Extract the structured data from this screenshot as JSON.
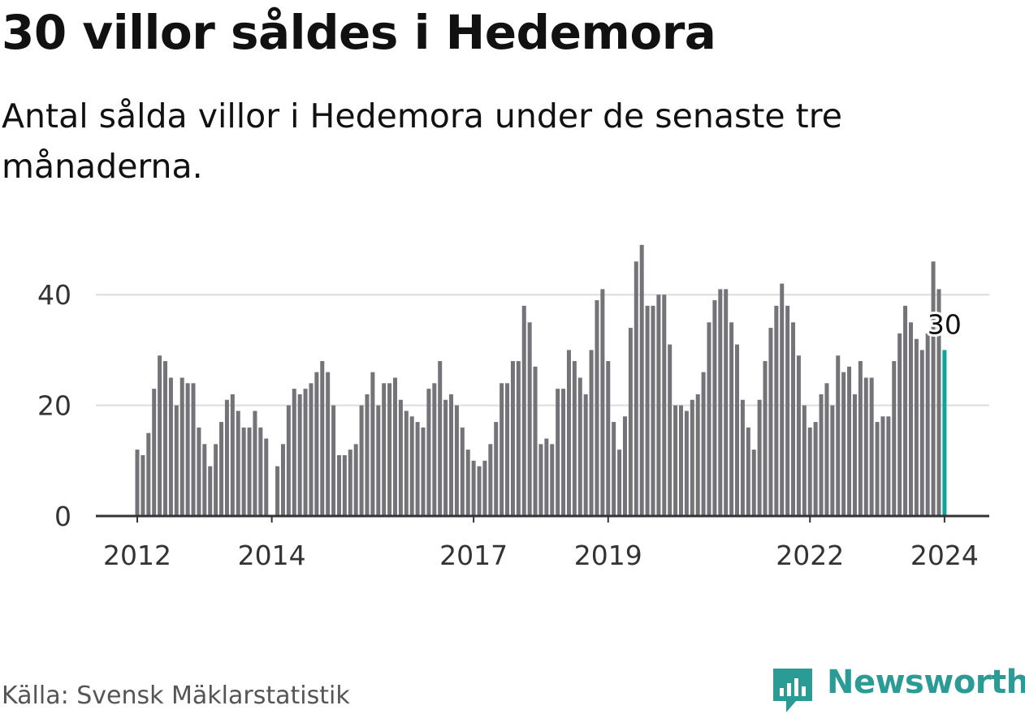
{
  "title": "30 villor såldes i Hedemora",
  "subtitle": "Antal sålda villor i Hedemora under de senaste tre månaderna.",
  "source": "Källa: Svensk Mäklarstatistik",
  "logo": {
    "name": "Newsworthy",
    "icon": "newsworthy-logo-icon",
    "color": "#2a9b95"
  },
  "colors": {
    "bar": "#737378",
    "highlight": "#13a199",
    "grid": "#dddddd",
    "axis": "#333333"
  },
  "chart_data": {
    "type": "bar",
    "title": "30 villor såldes i Hedemora",
    "ylabel": "",
    "xlabel": "",
    "ylim": [
      0,
      50
    ],
    "yticks": [
      0,
      20,
      40
    ],
    "grid": true,
    "start": "2012-01",
    "values": [
      12,
      11,
      15,
      23,
      29,
      28,
      25,
      20,
      25,
      24,
      24,
      16,
      13,
      9,
      13,
      17,
      21,
      22,
      19,
      16,
      16,
      19,
      16,
      14,
      null,
      9,
      13,
      20,
      23,
      22,
      23,
      24,
      26,
      28,
      26,
      20,
      11,
      11,
      12,
      13,
      20,
      22,
      26,
      20,
      24,
      24,
      25,
      21,
      19,
      18,
      17,
      16,
      23,
      24,
      28,
      21,
      22,
      20,
      16,
      12,
      10,
      9,
      10,
      13,
      17,
      24,
      24,
      28,
      28,
      38,
      35,
      27,
      13,
      14,
      13,
      23,
      23,
      30,
      28,
      25,
      22,
      30,
      39,
      41,
      28,
      17,
      12,
      18,
      34,
      46,
      49,
      38,
      38,
      40,
      40,
      31,
      20,
      20,
      19,
      21,
      22,
      26,
      35,
      39,
      41,
      41,
      35,
      31,
      21,
      16,
      12,
      21,
      28,
      34,
      38,
      42,
      38,
      35,
      29,
      20,
      16,
      17,
      22,
      24,
      20,
      29,
      26,
      27,
      22,
      28,
      25,
      25,
      17,
      18,
      18,
      28,
      33,
      38,
      35,
      32,
      30,
      33,
      46,
      41,
      30
    ],
    "xticks": [
      {
        "label": "2012",
        "index": 0
      },
      {
        "label": "2014",
        "index": 24
      },
      {
        "label": "2017",
        "index": 60
      },
      {
        "label": "2019",
        "index": 84
      },
      {
        "label": "2022",
        "index": 120
      },
      {
        "label": "2024",
        "index": 144
      }
    ],
    "highlight_index": 144,
    "annotation": "30"
  }
}
